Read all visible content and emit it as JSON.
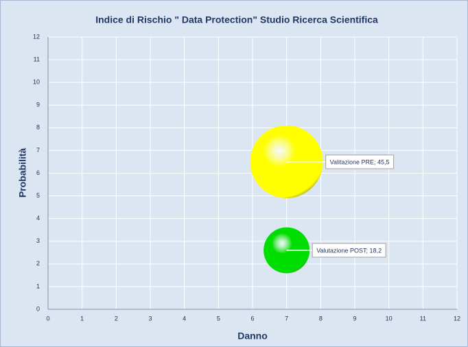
{
  "chart_data": {
    "type": "bubble",
    "title": "Indice di Rischio  \" Data Protection\" Studio Ricerca Scientifica",
    "xlabel": "Danno",
    "ylabel": "Probabilità",
    "xlim": [
      0,
      12
    ],
    "ylim": [
      0,
      12
    ],
    "xticks": [
      0,
      1,
      2,
      3,
      4,
      5,
      6,
      7,
      8,
      9,
      10,
      11,
      12
    ],
    "yticks": [
      0,
      1,
      2,
      3,
      4,
      5,
      6,
      7,
      8,
      9,
      10,
      11,
      12
    ],
    "grid": true,
    "series": [
      {
        "color": "#ffff00",
        "x": [
          7
        ],
        "values": [
          6.5
        ],
        "sizes": [
          45.5
        ],
        "value_labels": [
          "Valitazione PRE; 45,5"
        ]
      },
      {
        "color": "#00dd00",
        "x": [
          7
        ],
        "values": [
          2.6
        ],
        "sizes": [
          18.2
        ],
        "value_labels": [
          "Valutazione POST; 18,2"
        ]
      }
    ]
  }
}
